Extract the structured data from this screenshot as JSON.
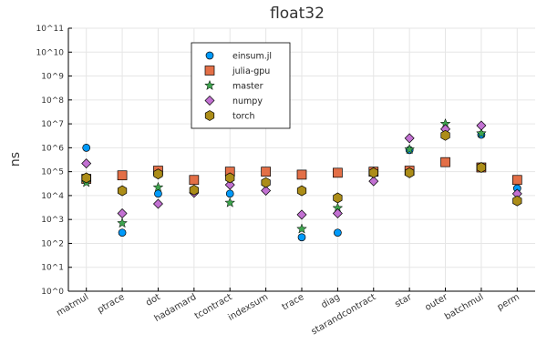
{
  "chart_data": {
    "type": "scatter",
    "title": "float32",
    "ylabel": "ns",
    "xlabel": "",
    "yscale": "log10",
    "ylim": [
      1,
      100000000000
    ],
    "yticks": [
      "10^0",
      "10^1",
      "10^2",
      "10^3",
      "10^4",
      "10^5",
      "10^6",
      "10^7",
      "10^8",
      "10^9",
      "10^10",
      "10^11"
    ],
    "categories": [
      "matmul",
      "ptrace",
      "dot",
      "hadamard",
      "tcontract",
      "indexsum",
      "trace",
      "diag",
      "starandcontract",
      "star",
      "outer",
      "batchmul",
      "perm"
    ],
    "grid": true,
    "legend": "top-center",
    "series": [
      {
        "name": "einsum.jl",
        "marker": "circle",
        "color": "#009AFA",
        "values": [
          1000000,
          280,
          12000,
          null,
          12000,
          null,
          180,
          280,
          null,
          800000,
          null,
          3500000,
          20000
        ]
      },
      {
        "name": "julia-gpu",
        "marker": "square",
        "color": "#E36F47",
        "values": [
          50000,
          70000,
          110000,
          45000,
          100000,
          100000,
          75000,
          90000,
          100000,
          110000,
          250000,
          150000,
          45000
        ]
      },
      {
        "name": "master",
        "marker": "star",
        "color": "#3EA44E",
        "values": [
          35000,
          700,
          22000,
          null,
          5000,
          null,
          400,
          3000,
          null,
          850000,
          10000000,
          4000000,
          null
        ]
      },
      {
        "name": "numpy",
        "marker": "diamond",
        "color": "#C271D2",
        "values": [
          220000,
          1800,
          4500,
          13000,
          28000,
          16000,
          1600,
          1800,
          40000,
          2500000,
          6000000,
          8500000,
          12000
        ]
      },
      {
        "name": "torch",
        "marker": "hexagon",
        "color": "#AC8D18",
        "values": [
          55000,
          16000,
          80000,
          17000,
          55000,
          35000,
          16000,
          8000,
          90000,
          90000,
          3300000,
          150000,
          6000
        ]
      }
    ]
  }
}
